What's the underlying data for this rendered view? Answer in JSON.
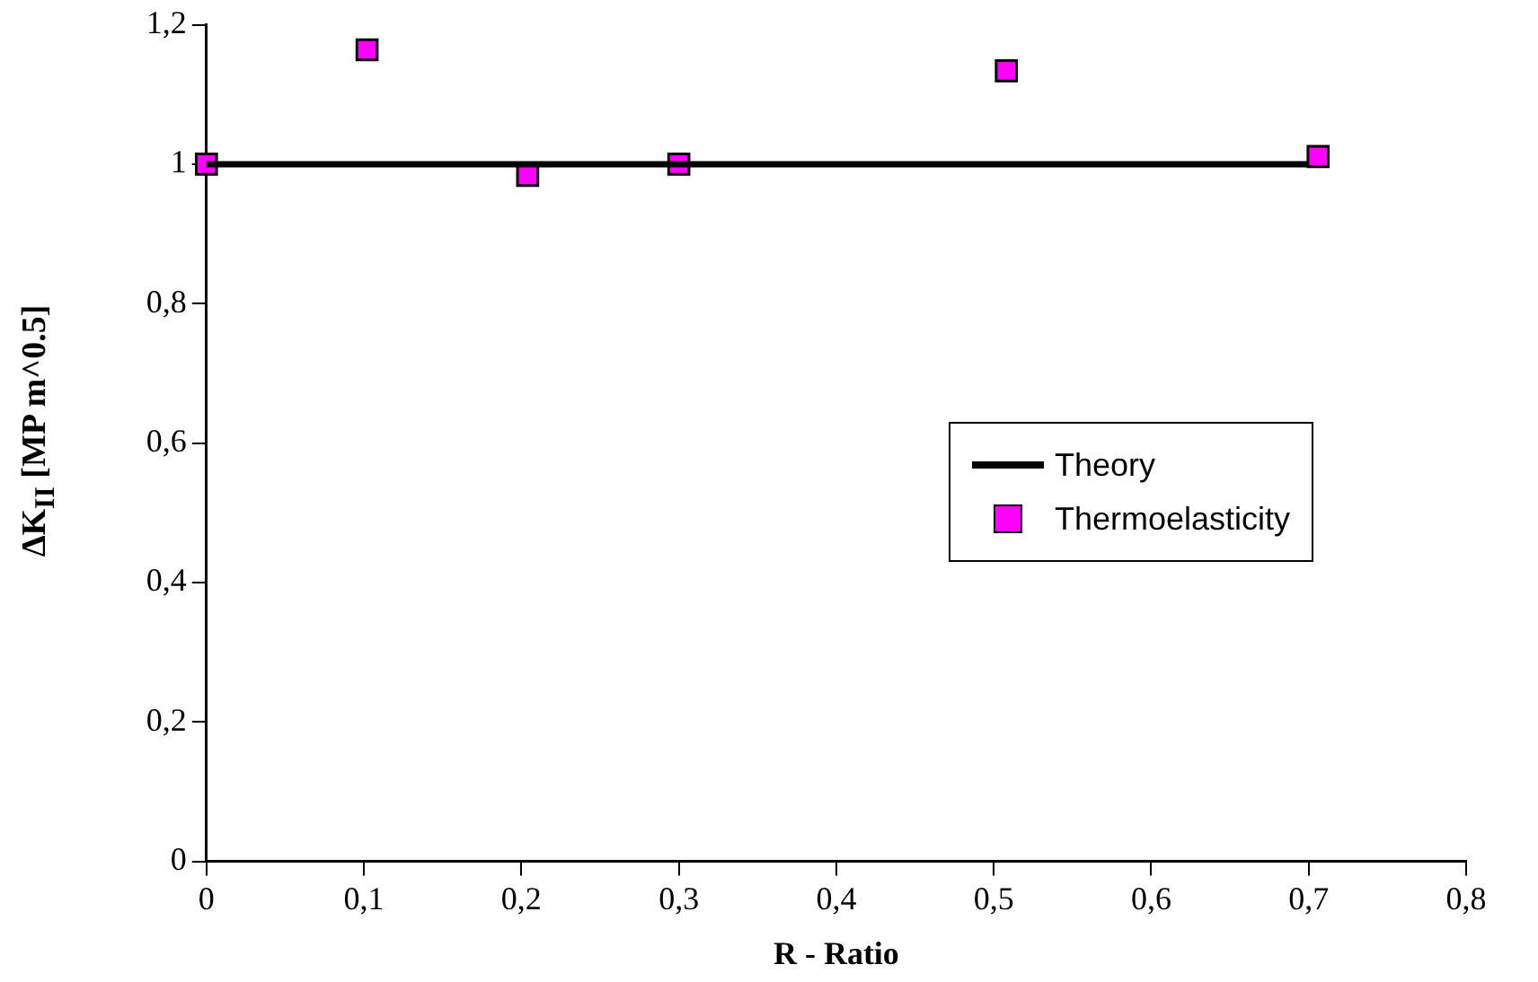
{
  "chart_data": {
    "type": "scatter",
    "xlabel": "R - Ratio",
    "ylabel": "ΔK$_{II}$ [MP m^0.5]",
    "xlim": [
      0,
      0.8
    ],
    "xticks": [
      {
        "value": 0,
        "label": "0"
      },
      {
        "value": 0.1,
        "label": "0,1"
      },
      {
        "value": 0.2,
        "label": "0,2"
      },
      {
        "value": 0.3,
        "label": "0,3"
      },
      {
        "value": 0.4,
        "label": "0,4"
      },
      {
        "value": 0.5,
        "label": "0,5"
      },
      {
        "value": 0.6,
        "label": "0,6"
      },
      {
        "value": 0.7,
        "label": "0,7"
      },
      {
        "value": 0.8,
        "label": "0,8"
      }
    ],
    "ylim": [
      0,
      1.2
    ],
    "yticks": [
      {
        "value": 0,
        "label": "0"
      },
      {
        "value": 0.2,
        "label": "0,2"
      },
      {
        "value": 0.4,
        "label": "0,4"
      },
      {
        "value": 0.6,
        "label": "0,6"
      },
      {
        "value": 0.8,
        "label": "0,8"
      },
      {
        "value": 1,
        "label": "1"
      },
      {
        "value": 1.2,
        "label": "1,2"
      }
    ],
    "grid": false,
    "legend": "right",
    "series": [
      {
        "name": "Theory",
        "type": "line",
        "color": "#000000",
        "marker": "none",
        "line_style": "solid",
        "x": [
          0,
          0.7
        ],
        "values": [
          1,
          1
        ]
      },
      {
        "name": "Thermoelasticity",
        "type": "scatter",
        "color": "#ff00ff",
        "marker": "square",
        "x": [
          0,
          0.102,
          0.204,
          0.3,
          0.508,
          0.706
        ],
        "values": [
          1.0,
          1.164,
          0.984,
          1.0,
          1.134,
          1.011
        ]
      }
    ]
  }
}
